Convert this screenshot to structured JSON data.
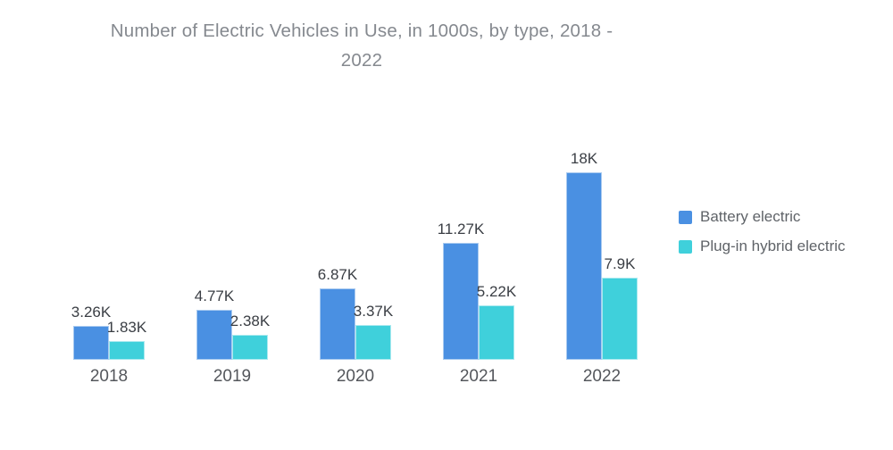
{
  "title": "Number of Electric Vehicles in Use, in 1000s, by type, 2018 - 2022",
  "title_lines": [
    "Number of Electric Vehicles in Use, in 1000s, by type, 2018 -",
    "2022"
  ],
  "chart_data": {
    "type": "bar",
    "title": "Number of Electric Vehicles in Use, in 1000s, by type, 2018 - 2022",
    "categories": [
      "2018",
      "2019",
      "2020",
      "2021",
      "2022"
    ],
    "series": [
      {
        "name": "Battery electric",
        "color": "#4A90E2",
        "values": [
          3.26,
          4.77,
          6.87,
          11.27,
          18
        ],
        "labels": [
          "3.26K",
          "4.77K",
          "6.87K",
          "11.27K",
          "18K"
        ]
      },
      {
        "name": "Plug-in hybrid electric",
        "color": "#3FD0DB",
        "values": [
          1.83,
          2.38,
          3.37,
          5.22,
          7.9
        ],
        "labels": [
          "1.83K",
          "2.38K",
          "3.37K",
          "5.22K",
          "7.9K"
        ]
      }
    ],
    "xlabel": "",
    "ylabel": "",
    "unit": "thousands",
    "ylim": [
      0,
      18
    ],
    "grid": false,
    "axes_visible": false,
    "value_labels_visible": true,
    "legend_position": "right"
  },
  "colors": {
    "background": "#FFFFFF",
    "title_text": "#85898F",
    "value_label_text": "#3A3E44",
    "axis_label_text": "#54575C",
    "legend_text": "#5F6368",
    "battery_electric": "#4A90E2",
    "plug_in_hybrid_electric": "#3FD0DB"
  }
}
